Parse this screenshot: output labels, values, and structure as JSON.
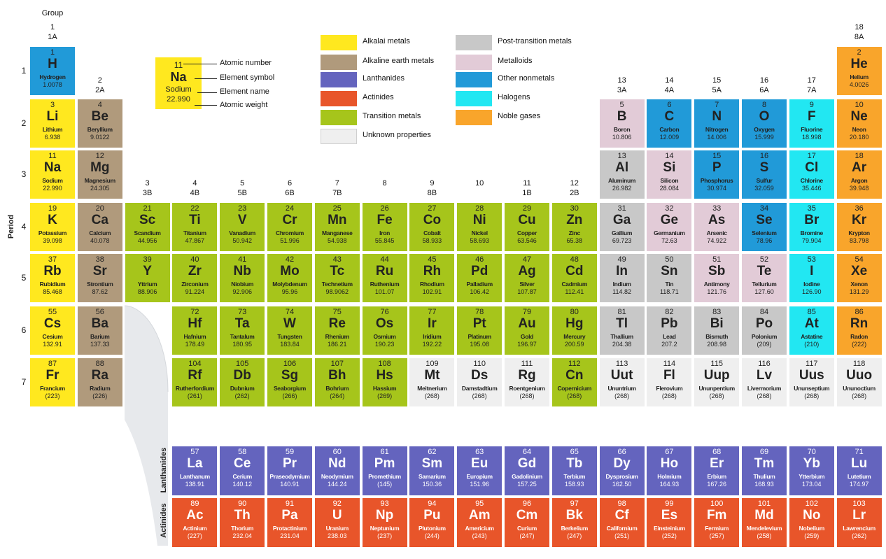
{
  "labels": {
    "group_word": "Group",
    "period_word": "Period",
    "lanthanides": "Lanthanides",
    "actinides": "Actinides"
  },
  "groups": [
    {
      "col": 1,
      "num": "1",
      "sub": "1A"
    },
    {
      "col": 2,
      "num": "2",
      "sub": "2A"
    },
    {
      "col": 3,
      "num": "3",
      "sub": "3B"
    },
    {
      "col": 4,
      "num": "4",
      "sub": "4B"
    },
    {
      "col": 5,
      "num": "5",
      "sub": "5B"
    },
    {
      "col": 6,
      "num": "6",
      "sub": "6B"
    },
    {
      "col": 7,
      "num": "7",
      "sub": "7B"
    },
    {
      "col": 8,
      "num": "8",
      "sub": ""
    },
    {
      "col": 9,
      "num": "9",
      "sub": "8B"
    },
    {
      "col": 10,
      "num": "10",
      "sub": ""
    },
    {
      "col": 11,
      "num": "11",
      "sub": "1B"
    },
    {
      "col": 12,
      "num": "12",
      "sub": "2B"
    },
    {
      "col": 13,
      "num": "13",
      "sub": "3A"
    },
    {
      "col": 14,
      "num": "14",
      "sub": "4A"
    },
    {
      "col": 15,
      "num": "15",
      "sub": "5A"
    },
    {
      "col": 16,
      "num": "16",
      "sub": "6A"
    },
    {
      "col": 17,
      "num": "17",
      "sub": "7A"
    },
    {
      "col": 18,
      "num": "18",
      "sub": "8A"
    }
  ],
  "periods": [
    "1",
    "2",
    "3",
    "4",
    "5",
    "6",
    "7"
  ],
  "colors": {
    "alkali": "#ffe81f",
    "alkaline": "#b09a7c",
    "lanthanide": "#6464be",
    "actinide": "#e8552a",
    "transition": "#a6c51b",
    "unknown": "#efefef",
    "post": "#c8c8c8",
    "metalloid": "#e2cbd7",
    "nonmetal": "#219ad8",
    "halogen": "#22e7f2",
    "noble": "#f9a52b"
  },
  "legend": [
    {
      "key": "alkali",
      "label": "Alkalai metals"
    },
    {
      "key": "alkaline",
      "label": "Alkaline earth metals"
    },
    {
      "key": "lanthanide",
      "label": "Lanthanides"
    },
    {
      "key": "actinide",
      "label": "Actinides"
    },
    {
      "key": "transition",
      "label": "Transition metals"
    },
    {
      "key": "unknown",
      "label": "Unknown properties"
    },
    {
      "key": "post",
      "label": "Post-transition metals"
    },
    {
      "key": "metalloid",
      "label": "Metalloids"
    },
    {
      "key": "nonmetal",
      "label": "Other nonmetals"
    },
    {
      "key": "halogen",
      "label": "Halogens"
    },
    {
      "key": "noble",
      "label": "Noble gases"
    }
  ],
  "key_example": {
    "number": "11",
    "symbol": "Na",
    "name": "Sodium",
    "weight": "22.990",
    "labels": [
      "Atomic number",
      "Element symbol",
      "Element name",
      "Atomic weight"
    ]
  },
  "elements": [
    {
      "n": "1",
      "s": "H",
      "name": "Hydrogen",
      "w": "1.0078",
      "g": 1,
      "p": 1,
      "c": "nonmetal"
    },
    {
      "n": "2",
      "s": "He",
      "name": "Helium",
      "w": "4.0026",
      "g": 18,
      "p": 1,
      "c": "noble"
    },
    {
      "n": "3",
      "s": "Li",
      "name": "Lithium",
      "w": "6.938",
      "g": 1,
      "p": 2,
      "c": "alkali"
    },
    {
      "n": "4",
      "s": "Be",
      "name": "Beryllium",
      "w": "9.0122",
      "g": 2,
      "p": 2,
      "c": "alkaline"
    },
    {
      "n": "5",
      "s": "B",
      "name": "Boron",
      "w": "10.806",
      "g": 13,
      "p": 2,
      "c": "metalloid"
    },
    {
      "n": "6",
      "s": "C",
      "name": "Carbon",
      "w": "12.009",
      "g": 14,
      "p": 2,
      "c": "nonmetal"
    },
    {
      "n": "7",
      "s": "N",
      "name": "Nitrogen",
      "w": "14.006",
      "g": 15,
      "p": 2,
      "c": "nonmetal"
    },
    {
      "n": "8",
      "s": "O",
      "name": "Oxygen",
      "w": "15.999",
      "g": 16,
      "p": 2,
      "c": "nonmetal"
    },
    {
      "n": "9",
      "s": "F",
      "name": "Fluorine",
      "w": "18.998",
      "g": 17,
      "p": 2,
      "c": "halogen"
    },
    {
      "n": "10",
      "s": "Ne",
      "name": "Neon",
      "w": "20.180",
      "g": 18,
      "p": 2,
      "c": "noble"
    },
    {
      "n": "11",
      "s": "Na",
      "name": "Sodium",
      "w": "22.990",
      "g": 1,
      "p": 3,
      "c": "alkali"
    },
    {
      "n": "12",
      "s": "Mg",
      "name": "Magnesium",
      "w": "24.305",
      "g": 2,
      "p": 3,
      "c": "alkaline"
    },
    {
      "n": "13",
      "s": "Al",
      "name": "Aluminum",
      "w": "26.982",
      "g": 13,
      "p": 3,
      "c": "post"
    },
    {
      "n": "14",
      "s": "Si",
      "name": "Silicon",
      "w": "28.084",
      "g": 14,
      "p": 3,
      "c": "metalloid"
    },
    {
      "n": "15",
      "s": "P",
      "name": "Phosphorus",
      "w": "30.974",
      "g": 15,
      "p": 3,
      "c": "nonmetal"
    },
    {
      "n": "16",
      "s": "S",
      "name": "Sulfur",
      "w": "32.059",
      "g": 16,
      "p": 3,
      "c": "nonmetal"
    },
    {
      "n": "17",
      "s": "Cl",
      "name": "Chlorine",
      "w": "35.446",
      "g": 17,
      "p": 3,
      "c": "halogen"
    },
    {
      "n": "18",
      "s": "Ar",
      "name": "Argon",
      "w": "39.948",
      "g": 18,
      "p": 3,
      "c": "noble"
    },
    {
      "n": "19",
      "s": "K",
      "name": "Potassium",
      "w": "39.098",
      "g": 1,
      "p": 4,
      "c": "alkali"
    },
    {
      "n": "20",
      "s": "Ca",
      "name": "Calcium",
      "w": "40.078",
      "g": 2,
      "p": 4,
      "c": "alkaline"
    },
    {
      "n": "21",
      "s": "Sc",
      "name": "Scandium",
      "w": "44.956",
      "g": 3,
      "p": 4,
      "c": "transition"
    },
    {
      "n": "22",
      "s": "Ti",
      "name": "Titanium",
      "w": "47.867",
      "g": 4,
      "p": 4,
      "c": "transition"
    },
    {
      "n": "23",
      "s": "V",
      "name": "Vanadium",
      "w": "50.942",
      "g": 5,
      "p": 4,
      "c": "transition"
    },
    {
      "n": "24",
      "s": "Cr",
      "name": "Chromium",
      "w": "51.996",
      "g": 6,
      "p": 4,
      "c": "transition"
    },
    {
      "n": "25",
      "s": "Mn",
      "name": "Manganese",
      "w": "54.938",
      "g": 7,
      "p": 4,
      "c": "transition"
    },
    {
      "n": "26",
      "s": "Fe",
      "name": "Iron",
      "w": "55.845",
      "g": 8,
      "p": 4,
      "c": "transition"
    },
    {
      "n": "27",
      "s": "Co",
      "name": "Cobalt",
      "w": "58.933",
      "g": 9,
      "p": 4,
      "c": "transition"
    },
    {
      "n": "28",
      "s": "Ni",
      "name": "Nickel",
      "w": "58.693",
      "g": 10,
      "p": 4,
      "c": "transition"
    },
    {
      "n": "29",
      "s": "Cu",
      "name": "Copper",
      "w": "63.546",
      "g": 11,
      "p": 4,
      "c": "transition"
    },
    {
      "n": "30",
      "s": "Zn",
      "name": "Zinc",
      "w": "65.38",
      "g": 12,
      "p": 4,
      "c": "transition"
    },
    {
      "n": "31",
      "s": "Ga",
      "name": "Gallium",
      "w": "69.723",
      "g": 13,
      "p": 4,
      "c": "post"
    },
    {
      "n": "32",
      "s": "Ge",
      "name": "Germanium",
      "w": "72.63",
      "g": 14,
      "p": 4,
      "c": "metalloid"
    },
    {
      "n": "33",
      "s": "As",
      "name": "Arsenic",
      "w": "74.922",
      "g": 15,
      "p": 4,
      "c": "metalloid"
    },
    {
      "n": "34",
      "s": "Se",
      "name": "Selenium",
      "w": "78.96",
      "g": 16,
      "p": 4,
      "c": "nonmetal"
    },
    {
      "n": "35",
      "s": "Br",
      "name": "Bromine",
      "w": "79.904",
      "g": 17,
      "p": 4,
      "c": "halogen"
    },
    {
      "n": "36",
      "s": "Kr",
      "name": "Krypton",
      "w": "83.798",
      "g": 18,
      "p": 4,
      "c": "noble"
    },
    {
      "n": "37",
      "s": "Rb",
      "name": "Rubidium",
      "w": "85.468",
      "g": 1,
      "p": 5,
      "c": "alkali"
    },
    {
      "n": "38",
      "s": "Sr",
      "name": "Strontium",
      "w": "87.62",
      "g": 2,
      "p": 5,
      "c": "alkaline"
    },
    {
      "n": "39",
      "s": "Y",
      "name": "Yttrium",
      "w": "88.906",
      "g": 3,
      "p": 5,
      "c": "transition"
    },
    {
      "n": "40",
      "s": "Zr",
      "name": "Zirconium",
      "w": "91.224",
      "g": 4,
      "p": 5,
      "c": "transition"
    },
    {
      "n": "41",
      "s": "Nb",
      "name": "Niobium",
      "w": "92.906",
      "g": 5,
      "p": 5,
      "c": "transition"
    },
    {
      "n": "42",
      "s": "Mo",
      "name": "Molybdenum",
      "w": "95.96",
      "g": 6,
      "p": 5,
      "c": "transition"
    },
    {
      "n": "43",
      "s": "Tc",
      "name": "Technetium",
      "w": "98.9062",
      "g": 7,
      "p": 5,
      "c": "transition"
    },
    {
      "n": "44",
      "s": "Ru",
      "name": "Ruthenium",
      "w": "101.07",
      "g": 8,
      "p": 5,
      "c": "transition"
    },
    {
      "n": "45",
      "s": "Rh",
      "name": "Rhodium",
      "w": "102.91",
      "g": 9,
      "p": 5,
      "c": "transition"
    },
    {
      "n": "46",
      "s": "Pd",
      "name": "Palladium",
      "w": "106.42",
      "g": 10,
      "p": 5,
      "c": "transition"
    },
    {
      "n": "47",
      "s": "Ag",
      "name": "Silver",
      "w": "107.87",
      "g": 11,
      "p": 5,
      "c": "transition"
    },
    {
      "n": "48",
      "s": "Cd",
      "name": "Cadmium",
      "w": "112.41",
      "g": 12,
      "p": 5,
      "c": "transition"
    },
    {
      "n": "49",
      "s": "In",
      "name": "Indium",
      "w": "114.82",
      "g": 13,
      "p": 5,
      "c": "post"
    },
    {
      "n": "50",
      "s": "Sn",
      "name": "Tin",
      "w": "118.71",
      "g": 14,
      "p": 5,
      "c": "post"
    },
    {
      "n": "51",
      "s": "Sb",
      "name": "Antimony",
      "w": "121.76",
      "g": 15,
      "p": 5,
      "c": "metalloid"
    },
    {
      "n": "52",
      "s": "Te",
      "name": "Tellurium",
      "w": "127.60",
      "g": 16,
      "p": 5,
      "c": "metalloid"
    },
    {
      "n": "53",
      "s": "I",
      "name": "Iodine",
      "w": "126.90",
      "g": 17,
      "p": 5,
      "c": "halogen"
    },
    {
      "n": "54",
      "s": "Xe",
      "name": "Xenon",
      "w": "131.29",
      "g": 18,
      "p": 5,
      "c": "noble"
    },
    {
      "n": "55",
      "s": "Cs",
      "name": "Cesium",
      "w": "132.91",
      "g": 1,
      "p": 6,
      "c": "alkali"
    },
    {
      "n": "56",
      "s": "Ba",
      "name": "Barium",
      "w": "137.33",
      "g": 2,
      "p": 6,
      "c": "alkaline"
    },
    {
      "n": "72",
      "s": "Hf",
      "name": "Hafnium",
      "w": "178.49",
      "g": 4,
      "p": 6,
      "c": "transition"
    },
    {
      "n": "73",
      "s": "Ta",
      "name": "Tantalum",
      "w": "180.95",
      "g": 5,
      "p": 6,
      "c": "transition"
    },
    {
      "n": "74",
      "s": "W",
      "name": "Tungsten",
      "w": "183.84",
      "g": 6,
      "p": 6,
      "c": "transition"
    },
    {
      "n": "75",
      "s": "Re",
      "name": "Rhenium",
      "w": "186.21",
      "g": 7,
      "p": 6,
      "c": "transition"
    },
    {
      "n": "76",
      "s": "Os",
      "name": "Osmium",
      "w": "190.23",
      "g": 8,
      "p": 6,
      "c": "transition"
    },
    {
      "n": "77",
      "s": "Ir",
      "name": "Iridium",
      "w": "192.22",
      "g": 9,
      "p": 6,
      "c": "transition"
    },
    {
      "n": "78",
      "s": "Pt",
      "name": "Platinum",
      "w": "195.08",
      "g": 10,
      "p": 6,
      "c": "transition"
    },
    {
      "n": "79",
      "s": "Au",
      "name": "Gold",
      "w": "196.97",
      "g": 11,
      "p": 6,
      "c": "transition"
    },
    {
      "n": "80",
      "s": "Hg",
      "name": "Mercury",
      "w": "200.59",
      "g": 12,
      "p": 6,
      "c": "transition"
    },
    {
      "n": "81",
      "s": "Tl",
      "name": "Thallium",
      "w": "204.38",
      "g": 13,
      "p": 6,
      "c": "post"
    },
    {
      "n": "82",
      "s": "Pb",
      "name": "Lead",
      "w": "207.2",
      "g": 14,
      "p": 6,
      "c": "post"
    },
    {
      "n": "83",
      "s": "Bi",
      "name": "Bismuth",
      "w": "208.98",
      "g": 15,
      "p": 6,
      "c": "post"
    },
    {
      "n": "84",
      "s": "Po",
      "name": "Polonium",
      "w": "(209)",
      "g": 16,
      "p": 6,
      "c": "post"
    },
    {
      "n": "85",
      "s": "At",
      "name": "Astatine",
      "w": "(210)",
      "g": 17,
      "p": 6,
      "c": "halogen"
    },
    {
      "n": "86",
      "s": "Rn",
      "name": "Radon",
      "w": "(222)",
      "g": 18,
      "p": 6,
      "c": "noble"
    },
    {
      "n": "87",
      "s": "Fr",
      "name": "Francium",
      "w": "(223)",
      "g": 1,
      "p": 7,
      "c": "alkali"
    },
    {
      "n": "88",
      "s": "Ra",
      "name": "Radium",
      "w": "(226)",
      "g": 2,
      "p": 7,
      "c": "alkaline"
    },
    {
      "n": "104",
      "s": "Rf",
      "name": "Rutherfordium",
      "w": "(261)",
      "g": 4,
      "p": 7,
      "c": "transition"
    },
    {
      "n": "105",
      "s": "Db",
      "name": "Dubnium",
      "w": "(262)",
      "g": 5,
      "p": 7,
      "c": "transition"
    },
    {
      "n": "106",
      "s": "Sg",
      "name": "Seaborgium",
      "w": "(266)",
      "g": 6,
      "p": 7,
      "c": "transition"
    },
    {
      "n": "107",
      "s": "Bh",
      "name": "Bohrium",
      "w": "(264)",
      "g": 7,
      "p": 7,
      "c": "transition"
    },
    {
      "n": "108",
      "s": "Hs",
      "name": "Hassium",
      "w": "(269)",
      "g": 8,
      "p": 7,
      "c": "transition"
    },
    {
      "n": "109",
      "s": "Mt",
      "name": "Meitnerium",
      "w": "(268)",
      "g": 9,
      "p": 7,
      "c": "unknown"
    },
    {
      "n": "110",
      "s": "Ds",
      "name": "Damstadtium",
      "w": "(268)",
      "g": 10,
      "p": 7,
      "c": "unknown"
    },
    {
      "n": "111",
      "s": "Rg",
      "name": "Roentgenium",
      "w": "(268)",
      "g": 11,
      "p": 7,
      "c": "unknown"
    },
    {
      "n": "112",
      "s": "Cn",
      "name": "Copernicium",
      "w": "(268)",
      "g": 12,
      "p": 7,
      "c": "transition"
    },
    {
      "n": "113",
      "s": "Uut",
      "name": "Ununtrium",
      "w": "(268)",
      "g": 13,
      "p": 7,
      "c": "unknown"
    },
    {
      "n": "114",
      "s": "Fl",
      "name": "Flerovium",
      "w": "(268)",
      "g": 14,
      "p": 7,
      "c": "unknown"
    },
    {
      "n": "115",
      "s": "Uup",
      "name": "Ununpentium",
      "w": "(268)",
      "g": 15,
      "p": 7,
      "c": "unknown"
    },
    {
      "n": "116",
      "s": "Lv",
      "name": "Livermorium",
      "w": "(268)",
      "g": 16,
      "p": 7,
      "c": "unknown"
    },
    {
      "n": "117",
      "s": "Uus",
      "name": "Ununseptium",
      "w": "(268)",
      "g": 17,
      "p": 7,
      "c": "unknown"
    },
    {
      "n": "118",
      "s": "Uuo",
      "name": "Ununoctium",
      "w": "(268)",
      "g": 18,
      "p": 7,
      "c": "unknown"
    },
    {
      "n": "57",
      "s": "La",
      "name": "Lanthanum",
      "w": "138.91",
      "g": 4,
      "p": 8,
      "c": "lanthanide"
    },
    {
      "n": "58",
      "s": "Ce",
      "name": "Cerium",
      "w": "140.12",
      "g": 5,
      "p": 8,
      "c": "lanthanide"
    },
    {
      "n": "59",
      "s": "Pr",
      "name": "Praseodymium",
      "w": "140.91",
      "g": 6,
      "p": 8,
      "c": "lanthanide"
    },
    {
      "n": "60",
      "s": "Nd",
      "name": "Neodymium",
      "w": "144.24",
      "g": 7,
      "p": 8,
      "c": "lanthanide"
    },
    {
      "n": "61",
      "s": "Pm",
      "name": "Promethium",
      "w": "(145)",
      "g": 8,
      "p": 8,
      "c": "lanthanide"
    },
    {
      "n": "62",
      "s": "Sm",
      "name": "Samarium",
      "w": "150.36",
      "g": 9,
      "p": 8,
      "c": "lanthanide"
    },
    {
      "n": "63",
      "s": "Eu",
      "name": "Europium",
      "w": "151.96",
      "g": 10,
      "p": 8,
      "c": "lanthanide"
    },
    {
      "n": "64",
      "s": "Gd",
      "name": "Gadolinium",
      "w": "157.25",
      "g": 11,
      "p": 8,
      "c": "lanthanide"
    },
    {
      "n": "65",
      "s": "Tb",
      "name": "Terbium",
      "w": "158.93",
      "g": 12,
      "p": 8,
      "c": "lanthanide"
    },
    {
      "n": "66",
      "s": "Dy",
      "name": "Dysprosium",
      "w": "162.50",
      "g": 13,
      "p": 8,
      "c": "lanthanide"
    },
    {
      "n": "67",
      "s": "Ho",
      "name": "Holmium",
      "w": "164.93",
      "g": 14,
      "p": 8,
      "c": "lanthanide"
    },
    {
      "n": "68",
      "s": "Er",
      "name": "Erbium",
      "w": "167.26",
      "g": 15,
      "p": 8,
      "c": "lanthanide"
    },
    {
      "n": "69",
      "s": "Tm",
      "name": "Thulium",
      "w": "168.93",
      "g": 16,
      "p": 8,
      "c": "lanthanide"
    },
    {
      "n": "70",
      "s": "Yb",
      "name": "Ytterbium",
      "w": "173.04",
      "g": 17,
      "p": 8,
      "c": "lanthanide"
    },
    {
      "n": "71",
      "s": "Lu",
      "name": "Lutetium",
      "w": "174.97",
      "g": 18,
      "p": 8,
      "c": "lanthanide"
    },
    {
      "n": "89",
      "s": "Ac",
      "name": "Actinium",
      "w": "(227)",
      "g": 4,
      "p": 9,
      "c": "actinide"
    },
    {
      "n": "90",
      "s": "Th",
      "name": "Thorium",
      "w": "232.04",
      "g": 5,
      "p": 9,
      "c": "actinide"
    },
    {
      "n": "91",
      "s": "Pa",
      "name": "Protactinium",
      "w": "231.04",
      "g": 6,
      "p": 9,
      "c": "actinide"
    },
    {
      "n": "92",
      "s": "U",
      "name": "Uranium",
      "w": "238.03",
      "g": 7,
      "p": 9,
      "c": "actinide"
    },
    {
      "n": "93",
      "s": "Np",
      "name": "Neptunium",
      "w": "(237)",
      "g": 8,
      "p": 9,
      "c": "actinide"
    },
    {
      "n": "94",
      "s": "Pu",
      "name": "Plutonium",
      "w": "(244)",
      "g": 9,
      "p": 9,
      "c": "actinide"
    },
    {
      "n": "95",
      "s": "Am",
      "name": "Americium",
      "w": "(243)",
      "g": 10,
      "p": 9,
      "c": "actinide"
    },
    {
      "n": "96",
      "s": "Cm",
      "name": "Curium",
      "w": "(247)",
      "g": 11,
      "p": 9,
      "c": "actinide"
    },
    {
      "n": "97",
      "s": "Bk",
      "name": "Berkelium",
      "w": "(247)",
      "g": 12,
      "p": 9,
      "c": "actinide"
    },
    {
      "n": "98",
      "s": "Cf",
      "name": "Californium",
      "w": "(251)",
      "g": 13,
      "p": 9,
      "c": "actinide"
    },
    {
      "n": "99",
      "s": "Es",
      "name": "Einsteinium",
      "w": "(252)",
      "g": 14,
      "p": 9,
      "c": "actinide"
    },
    {
      "n": "100",
      "s": "Fm",
      "name": "Fermium",
      "w": "(257)",
      "g": 15,
      "p": 9,
      "c": "actinide"
    },
    {
      "n": "101",
      "s": "Md",
      "name": "Mendelevium",
      "w": "(258)",
      "g": 16,
      "p": 9,
      "c": "actinide"
    },
    {
      "n": "102",
      "s": "No",
      "name": "Nobelium",
      "w": "(259)",
      "g": 17,
      "p": 9,
      "c": "actinide"
    },
    {
      "n": "103",
      "s": "Lr",
      "name": "Lawrencium",
      "w": "(262)",
      "g": 18,
      "p": 9,
      "c": "actinide"
    }
  ]
}
